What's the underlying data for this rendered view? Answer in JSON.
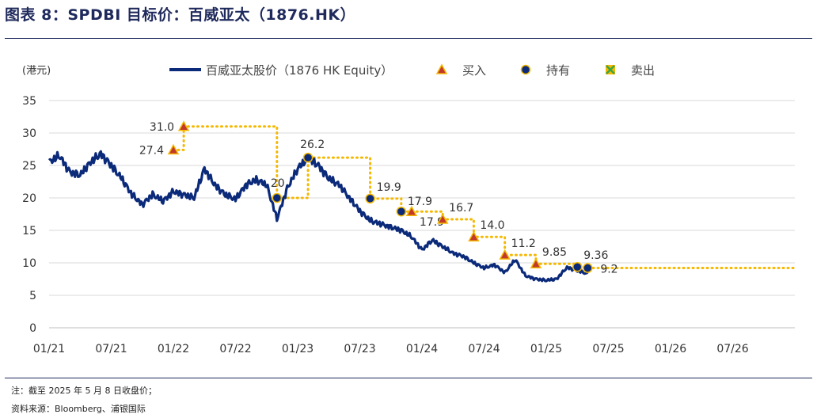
{
  "header": {
    "title": "图表 8：SPDBI 目标价：百威亚太（1876.HK）"
  },
  "footer": {
    "note": "注：截至 2025 年 5 月 8 日收盘价；",
    "source": "资料来源：Bloomberg、浦银国际"
  },
  "colors": {
    "price": "#0b2a7a",
    "target": "#f5b800",
    "buy": "#c0392b",
    "hold": "#0b2a7a",
    "sell": "#3aa64a",
    "grid": "#d9d9d9"
  },
  "chart_data": {
    "type": "line",
    "ylabel": "(港元)",
    "ylim": [
      0,
      35
    ],
    "y_ticks": [
      0,
      5,
      10,
      15,
      20,
      25,
      30,
      35
    ],
    "x_ticks": [
      "01/21",
      "07/21",
      "01/22",
      "07/22",
      "01/23",
      "07/23",
      "01/24",
      "07/24",
      "01/25",
      "07/25",
      "01/26",
      "07/26"
    ],
    "xlim": [
      "2021-01",
      "2027-01"
    ],
    "legend": [
      {
        "key": "price",
        "label": "百威亚太股价（1876 HK Equity）",
        "symbol": "line"
      },
      {
        "key": "buy",
        "label": "买入",
        "symbol": "triangle"
      },
      {
        "key": "hold",
        "label": "持有",
        "symbol": "circle"
      },
      {
        "key": "sell",
        "label": "卖出",
        "symbol": "square-x"
      }
    ],
    "price_series": {
      "name": "百威亚太股价（1876 HK Equity）",
      "points": [
        [
          "2021-01",
          25.5
        ],
        [
          "2021-02",
          26.5
        ],
        [
          "2021-03",
          24.0
        ],
        [
          "2021-04",
          23.5
        ],
        [
          "2021-05",
          25.5
        ],
        [
          "2021-06",
          26.8
        ],
        [
          "2021-07",
          25.0
        ],
        [
          "2021-08",
          23.0
        ],
        [
          "2021-09",
          20.5
        ],
        [
          "2021-10",
          19.0
        ],
        [
          "2021-11",
          20.5
        ],
        [
          "2021-12",
          19.5
        ],
        [
          "2022-01",
          21.0
        ],
        [
          "2022-02",
          20.5
        ],
        [
          "2022-03",
          20.0
        ],
        [
          "2022-04",
          24.5
        ],
        [
          "2022-05",
          22.0
        ],
        [
          "2022-06",
          20.5
        ],
        [
          "2022-07",
          19.8
        ],
        [
          "2022-08",
          22.0
        ],
        [
          "2022-09",
          22.8
        ],
        [
          "2022-10",
          22.0
        ],
        [
          "2022-11",
          16.8
        ],
        [
          "2022-12",
          21.5
        ],
        [
          "2023-01",
          24.5
        ],
        [
          "2023-02",
          26.2
        ],
        [
          "2023-03",
          25.0
        ],
        [
          "2023-04",
          23.0
        ],
        [
          "2023-05",
          22.0
        ],
        [
          "2023-06",
          20.0
        ],
        [
          "2023-07",
          18.0
        ],
        [
          "2023-08",
          16.5
        ],
        [
          "2023-09",
          16.0
        ],
        [
          "2023-10",
          15.5
        ],
        [
          "2023-11",
          15.0
        ],
        [
          "2023-12",
          14.0
        ],
        [
          "2024-01",
          12.0
        ],
        [
          "2024-02",
          13.5
        ],
        [
          "2024-03",
          12.5
        ],
        [
          "2024-04",
          11.5
        ],
        [
          "2024-05",
          11.0
        ],
        [
          "2024-06",
          10.0
        ],
        [
          "2024-07",
          9.2
        ],
        [
          "2024-08",
          9.7
        ],
        [
          "2024-09",
          8.5
        ],
        [
          "2024-10",
          10.5
        ],
        [
          "2024-11",
          8.0
        ],
        [
          "2024-12",
          7.5
        ],
        [
          "2025-01",
          7.3
        ],
        [
          "2025-02",
          7.5
        ],
        [
          "2025-03",
          9.3
        ],
        [
          "2025-04",
          8.8
        ],
        [
          "2025-05",
          8.3
        ]
      ]
    },
    "target_price_path": [
      [
        "2022-01",
        27.4
      ],
      [
        "2022-02",
        31.0
      ],
      [
        "2022-11",
        20.0
      ],
      [
        "2023-02",
        26.2
      ],
      [
        "2023-08",
        19.9
      ],
      [
        "2023-11",
        17.9
      ],
      [
        "2023-12",
        17.9
      ],
      [
        "2024-03",
        16.7
      ],
      [
        "2024-06",
        14.0
      ],
      [
        "2024-09",
        11.2
      ],
      [
        "2024-12",
        9.85
      ],
      [
        "2025-04",
        9.36
      ],
      [
        "2025-05",
        9.2
      ],
      [
        "2027-01",
        9.2
      ]
    ],
    "ratings": [
      {
        "date": "2022-01",
        "target": 27.4,
        "rating": "buy",
        "label": "27.4"
      },
      {
        "date": "2022-02",
        "target": 31.0,
        "rating": "buy",
        "label": "31.0"
      },
      {
        "date": "2022-11",
        "target": 20.0,
        "rating": "hold",
        "label": "20"
      },
      {
        "date": "2023-02",
        "target": 26.2,
        "rating": "hold",
        "label": "26.2"
      },
      {
        "date": "2023-08",
        "target": 19.9,
        "rating": "hold",
        "label": "19.9"
      },
      {
        "date": "2023-11",
        "target": 17.9,
        "rating": "hold",
        "label": "17.9"
      },
      {
        "date": "2023-12",
        "target": 17.9,
        "rating": "buy",
        "label": "17.9"
      },
      {
        "date": "2024-03",
        "target": 16.7,
        "rating": "buy",
        "label": "16.7"
      },
      {
        "date": "2024-06",
        "target": 14.0,
        "rating": "buy",
        "label": "14.0"
      },
      {
        "date": "2024-09",
        "target": 11.2,
        "rating": "buy",
        "label": "11.2"
      },
      {
        "date": "2024-12",
        "target": 9.85,
        "rating": "buy",
        "label": "9.85"
      },
      {
        "date": "2025-04",
        "target": 9.36,
        "rating": "hold",
        "label": "9.36"
      },
      {
        "date": "2025-05",
        "target": 9.2,
        "rating": "hold",
        "label": "9.2"
      }
    ]
  }
}
